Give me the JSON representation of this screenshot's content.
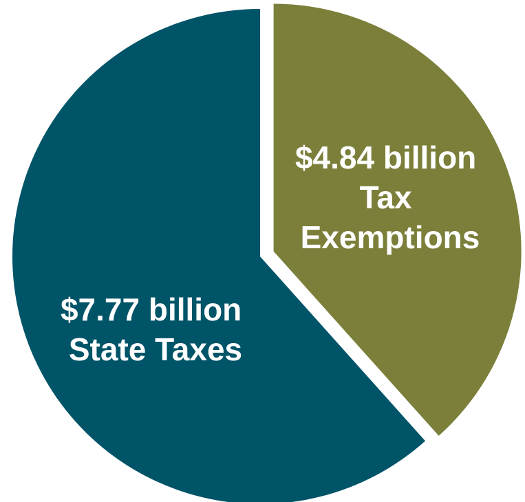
{
  "chart_data": {
    "type": "pie",
    "title": "",
    "slices": [
      {
        "label": "Tax Exemptions",
        "value": 4.84,
        "unit": "billion",
        "label_lines": [
          "$4.84 billion",
          "Tax",
          "Exemptions"
        ],
        "color": "#7b7f3a",
        "exploded": true
      },
      {
        "label": "State Taxes",
        "value": 7.77,
        "unit": "billion",
        "label_lines": [
          "$7.77 billion",
          "State Taxes"
        ],
        "color": "#005468",
        "exploded": false
      }
    ],
    "legend": "none",
    "start_angle_deg": 0,
    "direction": "clockwise"
  }
}
